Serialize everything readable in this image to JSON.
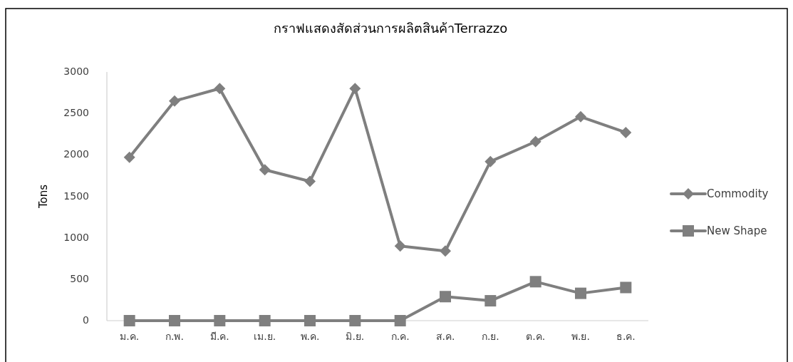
{
  "chart_data": {
    "type": "line",
    "title": "กราฟแสดงสัดส่วนการผลิตสินค้าTerrazzo",
    "ylabel": "Tons",
    "categories": [
      "ม.ค.",
      "ก.พ.",
      "มี.ค.",
      "เม.ย.",
      "พ.ค.",
      "มิ.ย.",
      "ก.ค.",
      "ส.ค.",
      "ก.ย.",
      "ต.ค.",
      "พ.ย.",
      "ธ.ค."
    ],
    "series": [
      {
        "name": "Commodity",
        "color": "#7f7f7f",
        "marker": "diamond",
        "values": [
          1970,
          2650,
          2800,
          1820,
          1680,
          2800,
          900,
          840,
          1920,
          2160,
          2460,
          2270
        ]
      },
      {
        "name": "New Shape",
        "color": "#7f7f7f",
        "marker": "square",
        "values": [
          0,
          0,
          0,
          0,
          0,
          0,
          0,
          290,
          240,
          470,
          330,
          400
        ]
      }
    ],
    "ylim": [
      0,
      3000
    ],
    "yticks": [
      0,
      500,
      1000,
      1500,
      2000,
      2500,
      3000
    ],
    "grid": false,
    "legend": "right",
    "line_style": "solid"
  }
}
